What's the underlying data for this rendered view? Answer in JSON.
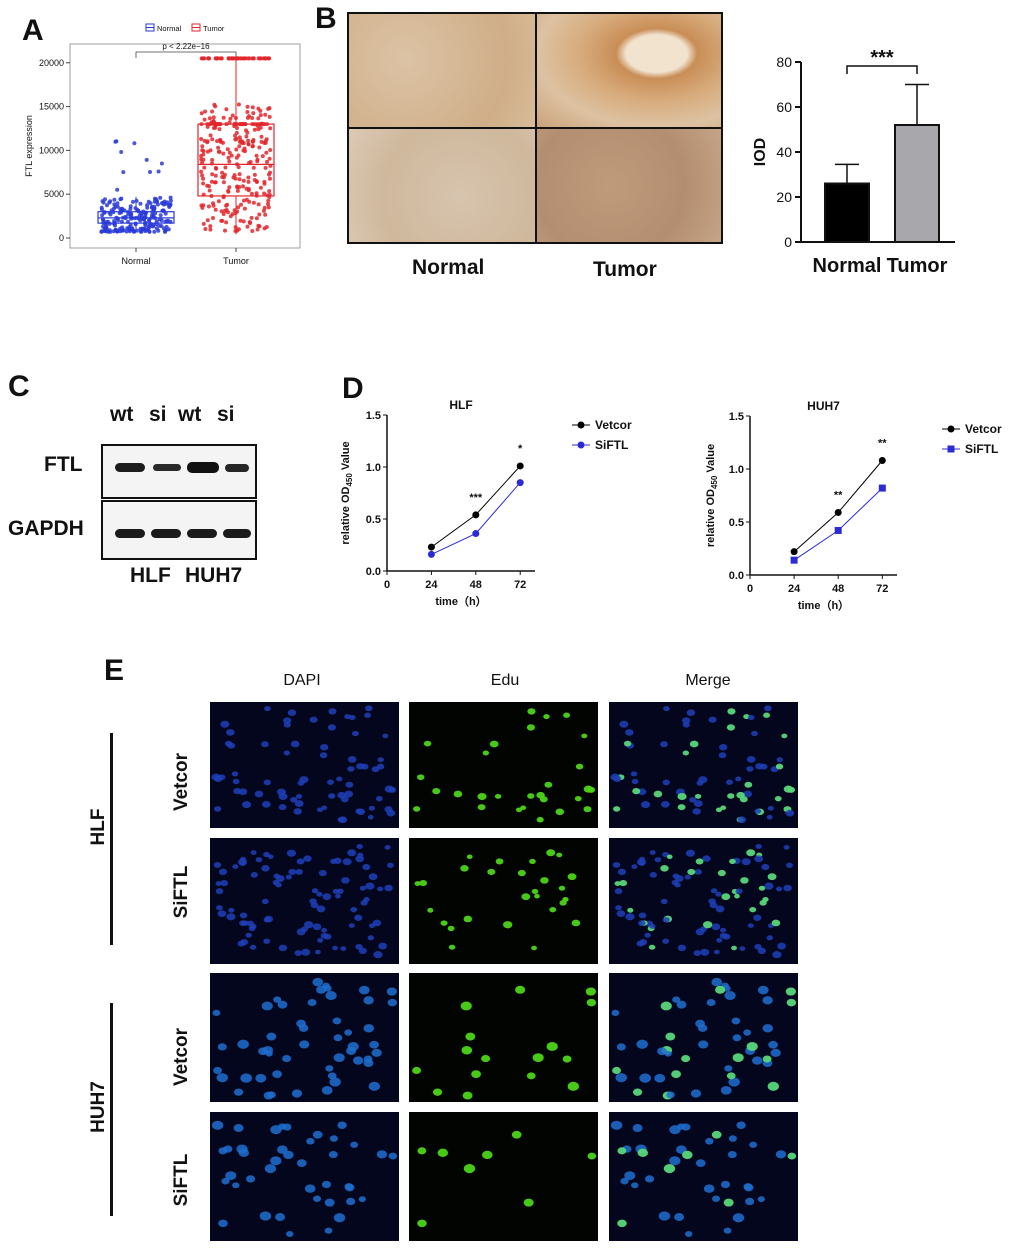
{
  "panels": {
    "A": {
      "letter": "A",
      "legend": [
        "Normal",
        "Tumor"
      ],
      "pvalue": "p < 2.22e−16"
    },
    "B": {
      "letter": "B",
      "image_labels": [
        "Normal",
        "Tumor"
      ]
    },
    "C": {
      "letter": "C",
      "lane_labels": [
        "wt",
        "si",
        "wt",
        "si"
      ],
      "row_labels": [
        "FTL",
        "GAPDH"
      ],
      "cell_lines": [
        "HLF",
        "HUH7"
      ]
    },
    "D": {
      "letter": "D"
    },
    "E": {
      "letter": "E",
      "columns": [
        "DAPI",
        "Edu",
        "Merge"
      ],
      "groups": [
        "HLF",
        "HUH7"
      ],
      "rows": [
        "Vetcor",
        "SiFTL",
        "Vetcor",
        "SiFTL"
      ]
    }
  },
  "colors": {
    "normal": "#2a3bd8",
    "tumor": "#e3262b",
    "bar_normal": "#000000",
    "bar_tumor": "#a8a8ac",
    "line_vector": "#000000",
    "line_si": "#2b2bd6",
    "dapi": "#1f3fb8",
    "edu": "#4cd418"
  },
  "chart_data": [
    {
      "type": "box",
      "categories": [
        "Normal",
        "Tumor"
      ],
      "ylabel": "FTL expression",
      "yticks": [
        0,
        5000,
        10000,
        15000,
        20000
      ],
      "ylim": [
        0,
        21000
      ],
      "boxes": [
        {
          "name": "Normal",
          "q1": 1700,
          "median": 2300,
          "q3": 3000,
          "min": 700,
          "max": 4700
        },
        {
          "name": "Tumor",
          "q1": 4800,
          "median": 8400,
          "q3": 13000,
          "min": 400,
          "max": 20500
        }
      ],
      "legend": "top"
    },
    {
      "type": "bar",
      "categories": [
        "Normal",
        "Tumor"
      ],
      "values": [
        26,
        52
      ],
      "errors": [
        8.5,
        18
      ],
      "ylabel": "IOD",
      "yticks": [
        0,
        20,
        40,
        60,
        80
      ],
      "ylim": [
        0,
        80
      ],
      "significance": "***"
    },
    {
      "type": "line",
      "title": "HLF",
      "xlabel": "time（h）",
      "ylabel_main": "relative OD",
      "ylabel_sub": "450",
      "ylabel_tail": " Value",
      "x_ticks": [
        0,
        24,
        48,
        72
      ],
      "yticks": [
        "0.0",
        "0.5",
        "1.0",
        "1.5"
      ],
      "ylim": [
        0,
        1.5
      ],
      "x": [
        24,
        48,
        72
      ],
      "series": [
        {
          "name": "Vetcor",
          "values": [
            0.23,
            0.54,
            1.01
          ],
          "marker": "circle"
        },
        {
          "name": "SiFTL",
          "values": [
            0.16,
            0.36,
            0.85
          ],
          "marker": "circle"
        }
      ],
      "significance": [
        "",
        "***",
        "*"
      ]
    },
    {
      "type": "line",
      "title": "HUH7",
      "xlabel": "time（h）",
      "ylabel_main": "relative OD",
      "ylabel_sub": "450",
      "ylabel_tail": " Value",
      "x_ticks": [
        0,
        24,
        48,
        72
      ],
      "yticks": [
        "0.0",
        "0.5",
        "1.0",
        "1.5"
      ],
      "ylim": [
        0,
        1.5
      ],
      "x": [
        24,
        48,
        72
      ],
      "series": [
        {
          "name": "Vetcor",
          "values": [
            0.22,
            0.59,
            1.08
          ],
          "marker": "circle"
        },
        {
          "name": "SiFTL",
          "values": [
            0.14,
            0.42,
            0.82
          ],
          "marker": "square"
        }
      ],
      "significance": [
        "",
        "**",
        "**"
      ]
    }
  ]
}
